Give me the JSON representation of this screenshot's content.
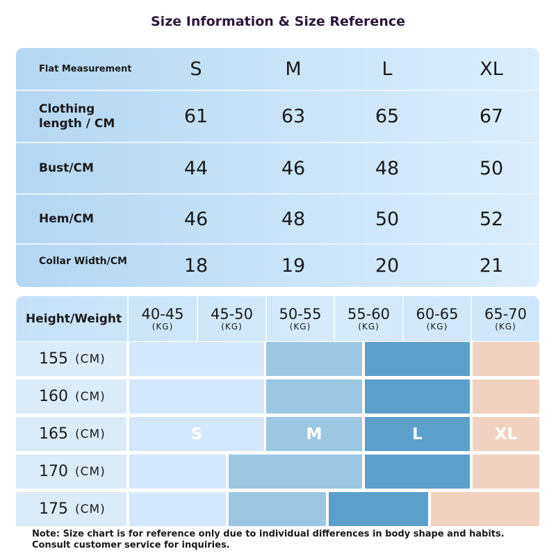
{
  "title": "Size Information & Size Reference",
  "measurements": {
    "header_label": "Flat Measurement",
    "sizes": [
      "S",
      "M",
      "L",
      "XL"
    ],
    "rows": [
      {
        "label_line1": "Clothing",
        "label_line2": "length / CM",
        "values": [
          "61",
          "63",
          "65",
          "67"
        ]
      },
      {
        "label": "Bust/CM",
        "values": [
          "44",
          "46",
          "48",
          "50"
        ]
      },
      {
        "label": "Hem/CM",
        "values": [
          "46",
          "48",
          "50",
          "52"
        ]
      },
      {
        "label": "Collar Width/CM",
        "values": [
          "18",
          "19",
          "20",
          "21"
        ]
      }
    ]
  },
  "reference": {
    "header_label": "Height/Weight",
    "weight_unit": "(KG)",
    "height_unit": "(CM)",
    "weights": [
      "40-45",
      "45-50",
      "50-55",
      "55-60",
      "60-65",
      "65-70"
    ],
    "heights": [
      "155",
      "160",
      "165",
      "170",
      "175"
    ],
    "size_labels": [
      "S",
      "M",
      "L",
      "XL"
    ]
  },
  "colors": {
    "size_S": "#d5e8fb",
    "size_M": "#9cc7e3",
    "size_L": "#5d9fcb",
    "size_XL": "#f1d2c0"
  },
  "note": "Note: Size chart is for reference only due to individual differences in body shape and habits. Consult customer service for inquiries."
}
